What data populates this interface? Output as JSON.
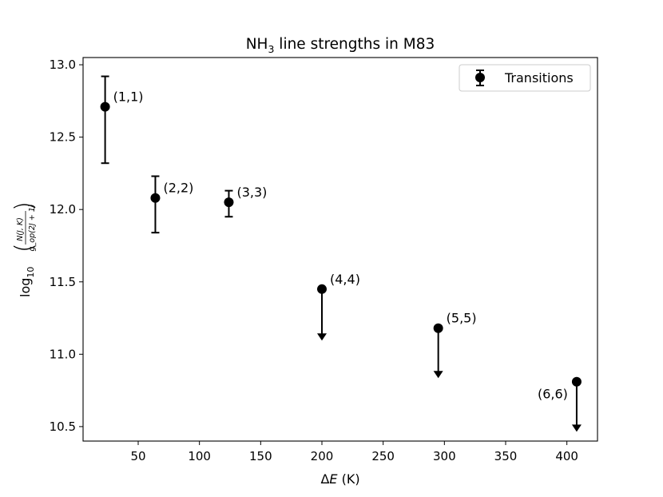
{
  "chart_data": {
    "type": "scatter",
    "title_main": "NH",
    "title_sub": "3",
    "title_rest": " line strengths in M83",
    "xlabel_delta": "Δ",
    "xlabel_var": "E",
    "xlabel_unit": " (K)",
    "ylabel_prefix": "log",
    "ylabel_sub": "10",
    "ylabel_num": "N(J, K)",
    "ylabel_den": "g_op(2J + 1)",
    "legend_label": "Transitions",
    "xlim": [
      5,
      425
    ],
    "ylim": [
      10.4,
      13.05
    ],
    "xticks": [
      50,
      100,
      150,
      200,
      250,
      300,
      350,
      400
    ],
    "xtick_labels": [
      "50",
      "100",
      "150",
      "200",
      "250",
      "300",
      "350",
      "400"
    ],
    "yticks": [
      10.5,
      11.0,
      11.5,
      12.0,
      12.5,
      13.0
    ],
    "ytick_labels": [
      "10.5",
      "11.0",
      "11.5",
      "12.0",
      "12.5",
      "13.0"
    ],
    "points": [
      {
        "label": "(1,1)",
        "x": 23,
        "y": 12.71,
        "err_low": 12.32,
        "err_high": 12.92,
        "upper_limit": false,
        "label_side": "right"
      },
      {
        "label": "(2,2)",
        "x": 64,
        "y": 12.08,
        "err_low": 11.84,
        "err_high": 12.23,
        "upper_limit": false,
        "label_side": "right"
      },
      {
        "label": "(3,3)",
        "x": 124,
        "y": 12.05,
        "err_low": 11.95,
        "err_high": 12.13,
        "upper_limit": false,
        "label_side": "right"
      },
      {
        "label": "(4,4)",
        "x": 200,
        "y": 11.45,
        "arrow_to": 11.1,
        "upper_limit": true,
        "label_side": "right"
      },
      {
        "label": "(5,5)",
        "x": 295,
        "y": 11.18,
        "arrow_to": 10.84,
        "upper_limit": true,
        "label_side": "right"
      },
      {
        "label": "(6,6)",
        "x": 408,
        "y": 10.81,
        "arrow_to": 10.47,
        "upper_limit": true,
        "label_side": "left"
      }
    ]
  }
}
